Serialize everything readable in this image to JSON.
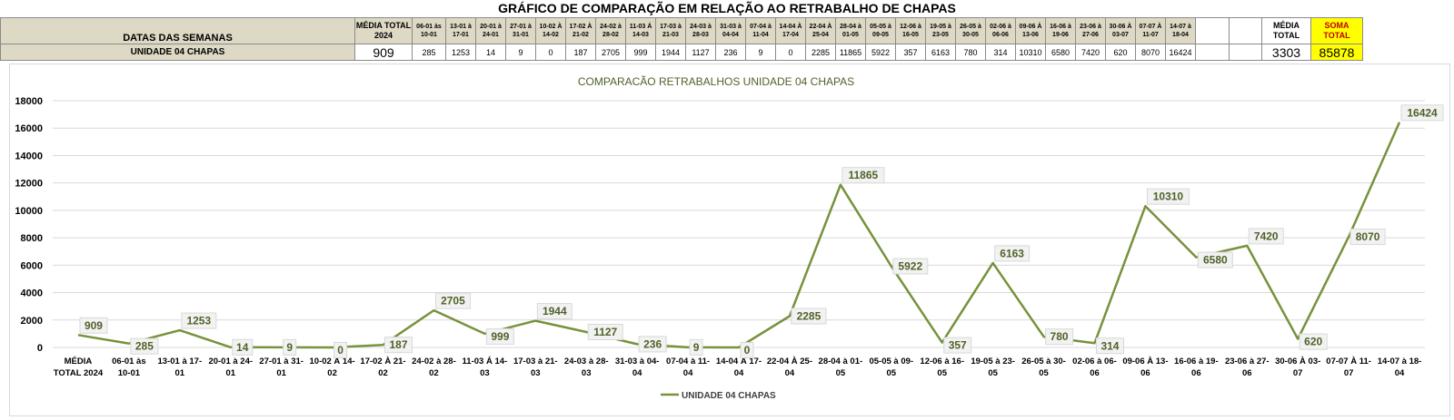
{
  "page_title": "GRÁFICO DE COMPARAÇÃO EM RELAÇÃO AO RETRABALHO DE CHAPAS",
  "table": {
    "row_header_label": "DATAS DAS SEMANAS",
    "row_label": "UNIDADE 04 CHAPAS",
    "media_header": "MÉDIA TOTAL 2024",
    "media_value": "909",
    "week_headers": [
      "06-01 às 10-01",
      "13-01 à 17-01",
      "20-01 à 24-01",
      "27-01 à 31-01",
      "10-02 À 14-02",
      "17-02 À 21-02",
      "24-02 à 28-02",
      "11-03 Á 14-03",
      "17-03 à 21-03",
      "24-03 à 28-03",
      "31-03 à 04-04",
      "07-04 à 11-04",
      "14-04 À 17-04",
      "22-04 À 25-04",
      "28-04 à 01-05",
      "05-05 à 09-05",
      "12-06 à 16-05",
      "19-05 à 23-05",
      "26-05 à 30-05",
      "02-06 à 06-06",
      "09-06 À 13-06",
      "16-06 à 19-06",
      "23-06 à 27-06",
      "30-06 À 03-07",
      "07-07 À 11-07",
      "14-07 à 18-04"
    ],
    "week_values": [
      "285",
      "1253",
      "14",
      "9",
      "0",
      "187",
      "2705",
      "999",
      "1944",
      "1127",
      "236",
      "9",
      "0",
      "2285",
      "11865",
      "5922",
      "357",
      "6163",
      "780",
      "314",
      "10310",
      "6580",
      "7420",
      "620",
      "8070",
      "16424"
    ],
    "media_total_header": "MÉDIA TOTAL",
    "media_total_value": "3303",
    "soma_total_header": "SOMA TOTAL",
    "soma_total_value": "85878"
  },
  "chart_data": {
    "type": "line",
    "title": "COMPARACÃO RETRABALHOS UNIDADE 04 CHAPAS",
    "xlabel": "",
    "ylabel": "",
    "ylim": [
      0,
      18000
    ],
    "yticks": [
      0,
      2000,
      4000,
      6000,
      8000,
      10000,
      12000,
      14000,
      16000,
      18000
    ],
    "grid": true,
    "legend": "bottom",
    "categories": [
      [
        "MÉDIA",
        "TOTAL 2024"
      ],
      [
        "06-01 às",
        "10-01"
      ],
      [
        "13-01 à 17-",
        "01"
      ],
      [
        "20-01 à 24-",
        "01"
      ],
      [
        "27-01 à 31-",
        "01"
      ],
      [
        "10-02 À 14-",
        "02"
      ],
      [
        "17-02 À 21-",
        "02"
      ],
      [
        "24-02 à 28-",
        "02"
      ],
      [
        "11-03 Á 14-",
        "03"
      ],
      [
        "17-03 à 21-",
        "03"
      ],
      [
        "24-03 à 28-",
        "03"
      ],
      [
        "31-03 à 04-",
        "04"
      ],
      [
        "07-04 à 11-",
        "04"
      ],
      [
        "14-04 À 17-",
        "04"
      ],
      [
        "22-04 À 25-",
        "04"
      ],
      [
        "28-04 à 01-",
        "05"
      ],
      [
        "05-05 à 09-",
        "05"
      ],
      [
        "12-06 à 16-",
        "05"
      ],
      [
        "19-05 à 23-",
        "05"
      ],
      [
        "26-05 à 30-",
        "05"
      ],
      [
        "02-06 à 06-",
        "06"
      ],
      [
        "09-06 À 13-",
        "06"
      ],
      [
        "16-06 à 19-",
        "06"
      ],
      [
        "23-06 à 27-",
        "06"
      ],
      [
        "30-06 À 03-",
        "07"
      ],
      [
        "07-07 À 11-",
        "07"
      ],
      [
        "14-07 à 18-",
        "04"
      ]
    ],
    "series": [
      {
        "name": "UNIDADE 04 CHAPAS",
        "values": [
          909,
          285,
          1253,
          14,
          9,
          0,
          187,
          2705,
          999,
          1944,
          1127,
          236,
          9,
          0,
          2285,
          11865,
          5922,
          357,
          6163,
          780,
          314,
          10310,
          6580,
          7420,
          620,
          8070,
          16424
        ]
      }
    ],
    "colors": {
      "line": "#76923c",
      "label_text": "#4f6228",
      "label_bg": "#f2f2f2",
      "label_border": "#d8d8d8",
      "grid": "#d9d9d9",
      "title": "#4f6228"
    }
  }
}
